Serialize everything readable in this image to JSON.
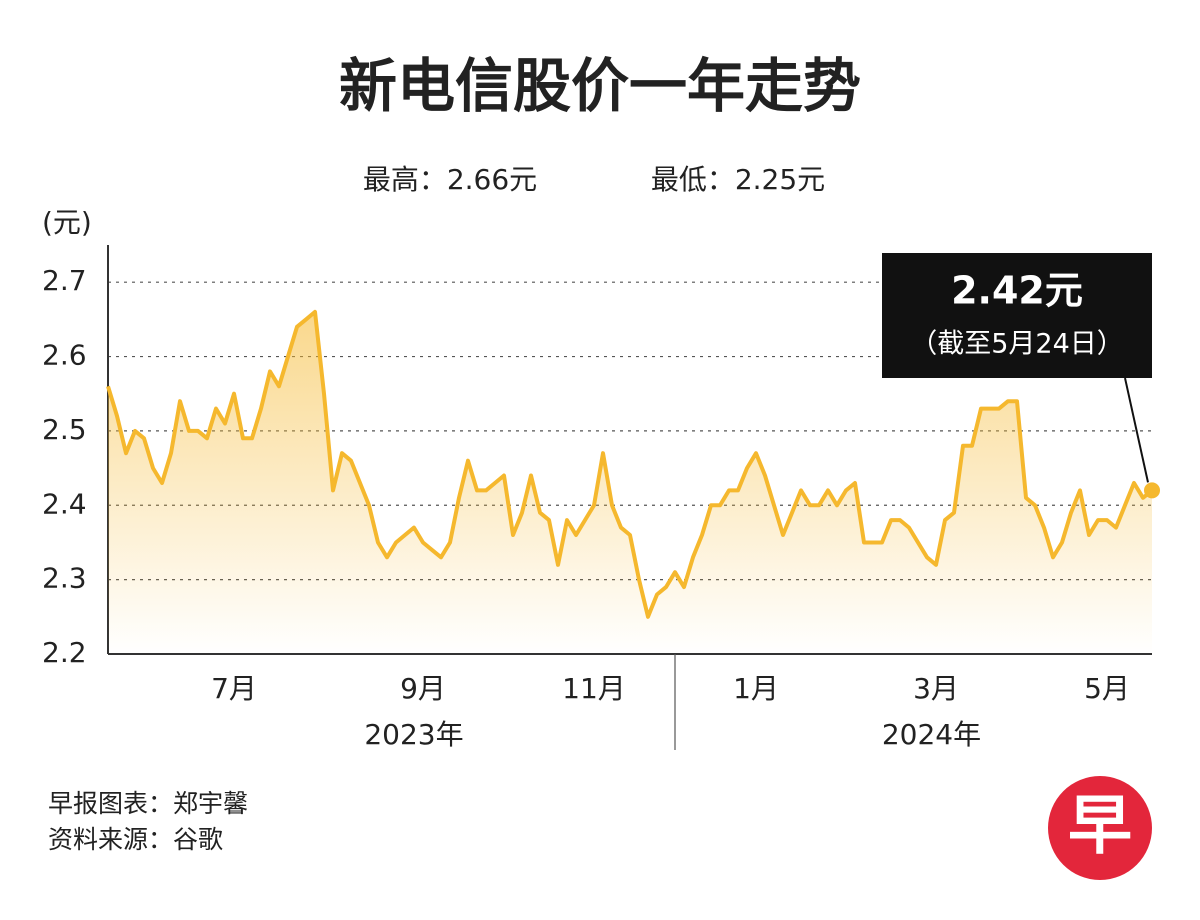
{
  "chart_data": {
    "type": "line",
    "title": "新电信股价一年走势",
    "subtitle_high": "最高：2.66元",
    "subtitle_low": "最低：2.25元",
    "y_unit": "(元)",
    "categories": [
      null,
      null,
      null,
      null,
      null,
      null,
      null,
      null,
      null,
      null,
      null,
      null,
      null,
      null,
      "7月",
      null,
      null,
      null,
      null,
      null,
      null,
      null,
      null,
      null,
      null,
      null,
      null,
      null,
      null,
      null,
      null,
      null,
      null,
      null,
      null,
      "9月",
      null,
      null,
      null,
      null,
      null,
      null,
      null,
      null,
      null,
      null,
      null,
      null,
      null,
      null,
      null,
      null,
      null,
      null,
      "11月",
      null,
      null,
      null,
      null,
      null,
      null,
      null,
      null,
      null,
      null,
      null,
      null,
      null,
      null,
      null,
      null,
      null,
      "1月",
      null,
      null,
      null,
      null,
      null,
      null,
      null,
      null,
      null,
      null,
      null,
      null,
      null,
      null,
      null,
      null,
      null,
      null,
      null,
      "3月",
      null,
      null,
      null,
      null,
      null,
      null,
      null,
      null,
      null,
      null,
      null,
      null,
      null,
      null,
      null,
      null,
      null,
      null,
      "5月",
      null,
      null,
      null,
      null,
      null
    ],
    "x_groups": [
      "2023年",
      "2024年"
    ],
    "values": [
      2.56,
      2.52,
      2.47,
      2.5,
      2.49,
      2.45,
      2.43,
      2.47,
      2.54,
      2.5,
      2.5,
      2.49,
      2.53,
      2.51,
      2.55,
      2.49,
      2.49,
      2.53,
      2.58,
      2.56,
      2.6,
      2.64,
      2.65,
      2.66,
      2.55,
      2.42,
      2.47,
      2.46,
      2.43,
      2.4,
      2.35,
      2.33,
      2.35,
      2.36,
      2.37,
      2.35,
      2.34,
      2.33,
      2.35,
      2.41,
      2.46,
      2.42,
      2.42,
      2.43,
      2.44,
      2.36,
      2.39,
      2.44,
      2.39,
      2.38,
      2.32,
      2.38,
      2.36,
      2.38,
      2.4,
      2.47,
      2.4,
      2.37,
      2.36,
      2.3,
      2.25,
      2.28,
      2.29,
      2.31,
      2.29,
      2.33,
      2.36,
      2.4,
      2.4,
      2.42,
      2.42,
      2.45,
      2.47,
      2.44,
      2.4,
      2.36,
      2.39,
      2.42,
      2.4,
      2.4,
      2.42,
      2.4,
      2.42,
      2.43,
      2.35,
      2.35,
      2.35,
      2.38,
      2.38,
      2.37,
      2.35,
      2.33,
      2.32,
      2.38,
      2.39,
      2.48,
      2.48,
      2.53,
      2.53,
      2.53,
      2.54,
      2.54,
      2.41,
      2.4,
      2.37,
      2.33,
      2.35,
      2.39,
      2.42,
      2.36,
      2.38,
      2.38,
      2.37,
      2.4,
      2.43,
      2.41,
      2.42
    ],
    "color": "#f5b82e",
    "ylim": [
      2.2,
      2.75
    ],
    "yticks": [
      2.2,
      2.3,
      2.4,
      2.5,
      2.6,
      2.7
    ],
    "grid": true,
    "callout_value": "2.42元",
    "callout_note": "（截至5月24日）",
    "credit": "早报图表：郑宇馨",
    "source": "资料来源：谷歌",
    "logo": "早"
  }
}
